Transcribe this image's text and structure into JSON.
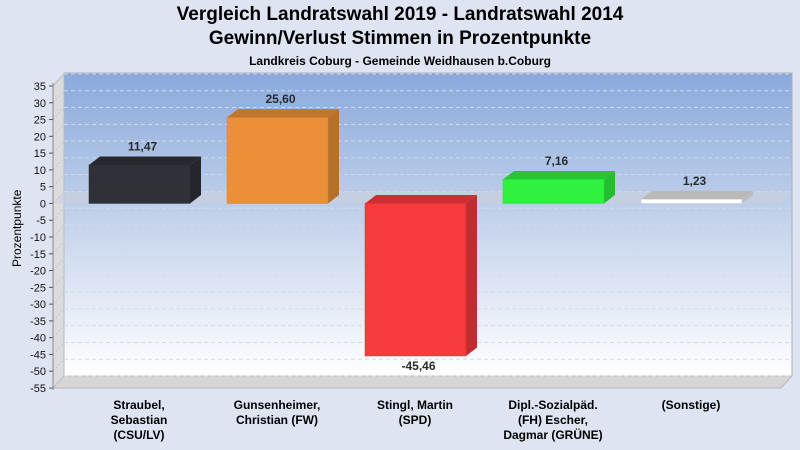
{
  "chart_data": {
    "type": "bar",
    "title": "Vergleich Landratswahl 2019 - Landratswahl 2014",
    "subtitle": "Gewinn/Verlust Stimmen in Prozentpunkte",
    "subsubtitle": "Landkreis Coburg - Gemeinde Weidhausen b.Coburg",
    "xlabel": "",
    "ylabel": "Prozentpunkte",
    "ylim": [
      -55,
      35
    ],
    "yticks": [
      35,
      30,
      25,
      20,
      15,
      10,
      5,
      0,
      -5,
      -10,
      -15,
      -20,
      -25,
      -30,
      -35,
      -40,
      -45,
      -50,
      -55
    ],
    "grid": true,
    "categories": [
      "Straubel,\nSebastian\n(CSU/LV)",
      "Gunsenheimer,\nChristian (FW)",
      "Stingl, Martin\n(SPD)",
      "Dipl.-Sozialpäd.\n(FH) Escher,\nDagmar (GRÜNE)",
      "(Sonstige)"
    ],
    "values": [
      11.47,
      25.6,
      -45.46,
      7.16,
      1.23
    ],
    "value_labels": [
      "11,47",
      "25,60",
      "-45,46",
      "7,16",
      "1,23"
    ],
    "colors": [
      "#2e3138",
      "#eb9038",
      "#f63a3e",
      "#2ef23e",
      "#ffffff"
    ]
  }
}
